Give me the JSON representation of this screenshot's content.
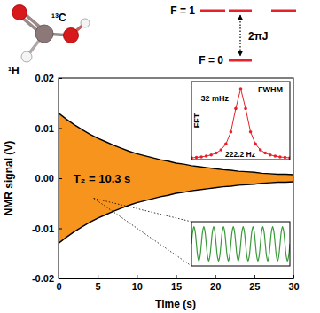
{
  "chart_data": [
    {
      "type": "line",
      "x_label": "Time (s)",
      "y_label": "NMR signal (V)",
      "x": [
        0,
        1,
        2,
        3,
        4,
        5,
        6,
        7,
        8,
        9,
        10,
        11,
        12,
        13,
        14,
        15,
        16,
        17,
        18,
        19,
        20,
        21,
        22,
        23,
        24,
        25,
        26,
        27,
        28,
        29,
        30
      ],
      "series": [
        {
          "type": "area",
          "color": "#f7941d",
          "values": [
            0.013,
            0.0118,
            0.0107,
            0.0097,
            0.0088,
            0.008,
            0.0073,
            0.0066,
            0.006,
            0.0054,
            0.0049,
            0.0045,
            0.0041,
            0.0037,
            0.0034,
            0.003,
            0.0028,
            0.0025,
            0.0023,
            0.0021,
            0.0019,
            0.0017,
            0.0016,
            0.0014,
            0.0013,
            0.0012,
            0.001,
            0.0009,
            0.0008,
            0.0008,
            0.0007
          ],
          "lower": [
            -0.013,
            -0.0118,
            -0.0107,
            -0.0097,
            -0.0088,
            -0.008,
            -0.0073,
            -0.0066,
            -0.006,
            -0.0054,
            -0.0049,
            -0.0045,
            -0.0041,
            -0.0037,
            -0.0034,
            -0.003,
            -0.0028,
            -0.0025,
            -0.0023,
            -0.0021,
            -0.0019,
            -0.0017,
            -0.0016,
            -0.0014,
            -0.0013,
            -0.0012,
            -0.001,
            -0.0009,
            -0.0008,
            -0.0008,
            -0.0007
          ]
        },
        {
          "type": "line",
          "color": "#000000",
          "line_style": "solid",
          "values": [
            0.013,
            0.0118,
            0.0107,
            0.0097,
            0.0088,
            0.008,
            0.0073,
            0.0066,
            0.006,
            0.0054,
            0.0049,
            0.0045,
            0.0041,
            0.0037,
            0.0034,
            0.003,
            0.0028,
            0.0025,
            0.0023,
            0.0021,
            0.0019,
            0.0017,
            0.0016,
            0.0014,
            0.0013,
            0.0012,
            0.001,
            0.0009,
            0.0008,
            0.0008,
            0.0007
          ]
        },
        {
          "type": "line",
          "color": "#000000",
          "line_style": "solid",
          "values": [
            -0.013,
            -0.0118,
            -0.0107,
            -0.0097,
            -0.0088,
            -0.008,
            -0.0073,
            -0.0066,
            -0.006,
            -0.0054,
            -0.0049,
            -0.0045,
            -0.0041,
            -0.0037,
            -0.0034,
            -0.003,
            -0.0028,
            -0.0025,
            -0.0023,
            -0.0021,
            -0.0019,
            -0.0017,
            -0.0016,
            -0.0014,
            -0.0013,
            -0.0012,
            -0.001,
            -0.0009,
            -0.0008,
            -0.0008,
            -0.0007
          ]
        }
      ],
      "xlim": [
        0,
        30
      ],
      "ylim": [
        -0.02,
        0.02
      ],
      "xticks": [
        0,
        5,
        10,
        15,
        20,
        25,
        30
      ],
      "yticks": [
        -0.02,
        -0.01,
        {
          "value": 0,
          "label": "0.00"
        },
        0.01,
        0.02
      ],
      "grid": false,
      "annotations": [
        "T₂ = 10.3 s"
      ]
    },
    {
      "type": "line",
      "y_label": "FFT",
      "x": [
        222.1,
        222.11,
        222.12,
        222.13,
        222.14,
        222.15,
        222.16,
        222.17,
        222.18,
        222.19,
        222.2,
        222.21,
        222.22,
        222.23,
        222.24,
        222.25,
        222.26,
        222.27,
        222.28,
        222.29,
        222.3
      ],
      "series": [
        {
          "color": "#e8202a",
          "marker": "circle",
          "line_style": "solid",
          "values": [
            0.025,
            0.031,
            0.038,
            0.05,
            0.066,
            0.093,
            0.138,
            0.22,
            0.39,
            0.72,
            1,
            0.72,
            0.39,
            0.22,
            0.138,
            0.093,
            0.066,
            0.05,
            0.038,
            0.031,
            0.025
          ]
        }
      ],
      "xlim": [
        222.1,
        222.3
      ],
      "ylim": [
        0,
        1.1
      ],
      "tick_labels": false,
      "grid": false,
      "annotations": [
        "FWHM",
        "32 mHz",
        "222.2 Hz"
      ]
    },
    {
      "type": "line",
      "x": [
        0,
        1,
        2,
        3,
        4,
        5,
        6,
        7,
        8,
        9,
        10,
        11,
        12,
        13,
        14,
        15,
        16,
        17,
        18,
        19,
        20,
        21,
        22,
        23,
        24,
        25,
        26,
        27,
        28,
        29,
        30,
        31,
        32,
        33,
        34,
        35,
        36,
        37,
        38,
        39,
        40,
        41,
        42,
        43,
        44,
        45,
        46,
        47,
        48,
        49,
        50,
        51,
        52,
        53,
        54,
        55,
        56,
        57,
        58,
        59,
        60,
        61,
        62,
        63,
        64,
        65,
        66,
        67,
        68,
        69,
        70,
        71,
        72,
        73,
        74,
        75,
        76,
        77,
        78,
        79,
        80
      ],
      "series": [
        {
          "color": "#3a9a3a",
          "marker": "none",
          "line_style": "solid",
          "values": [
            0,
            0.006,
            0.0085,
            0.006,
            0,
            -0.006,
            -0.0085,
            -0.006,
            0,
            0.006,
            0.0085,
            0.006,
            0,
            -0.006,
            -0.0085,
            -0.006,
            0,
            0.006,
            0.0085,
            0.006,
            0,
            -0.006,
            -0.0085,
            -0.006,
            0,
            0.006,
            0.0085,
            0.006,
            0,
            -0.006,
            -0.0085,
            -0.006,
            0,
            0.006,
            0.0085,
            0.006,
            0,
            -0.006,
            -0.0085,
            -0.006,
            0,
            0.006,
            0.0085,
            0.006,
            0,
            -0.006,
            -0.0085,
            -0.006,
            0,
            0.006,
            0.0085,
            0.006,
            0,
            -0.006,
            -0.0085,
            -0.006,
            0,
            0.006,
            0.0085,
            0.006,
            0,
            -0.006,
            -0.0085,
            -0.006,
            0,
            0.006,
            0.0085,
            0.006,
            0,
            -0.006,
            -0.0085,
            -0.006,
            0,
            0.006,
            0.0085,
            0.006,
            0,
            -0.006,
            -0.0085,
            -0.006,
            0
          ]
        }
      ],
      "xlim": [
        0,
        80
      ],
      "ylim": [
        -0.011,
        0.011
      ],
      "tick_labels": false,
      "grid": false
    }
  ],
  "diagram": {
    "atoms": [
      "¹³C",
      "¹H"
    ],
    "levels": [
      "F = 1",
      "F = 0"
    ],
    "splitting": "2πJ"
  }
}
